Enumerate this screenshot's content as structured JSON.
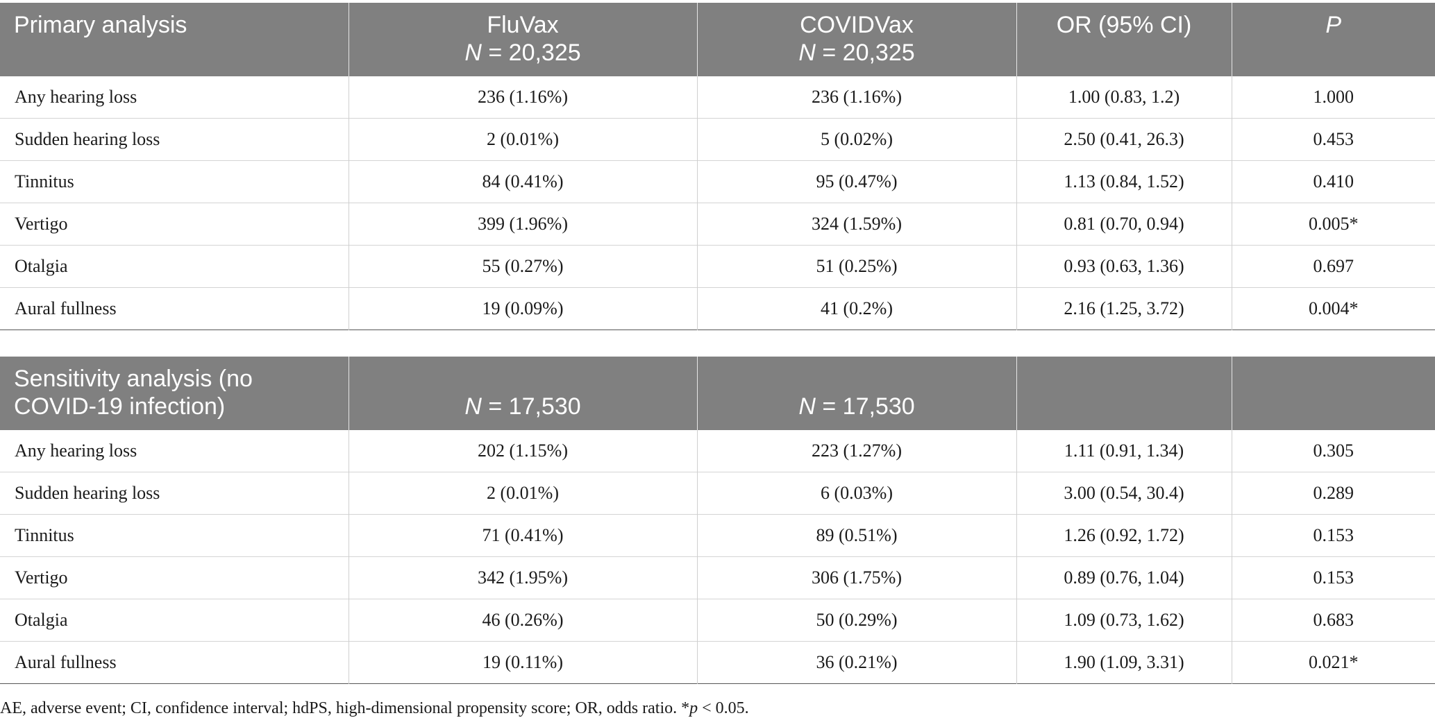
{
  "primary": {
    "headers": {
      "label": "Primary analysis",
      "fluvax_name": "FluVax",
      "fluvax_n_symbol": "N",
      "fluvax_n_value": " = 20,325",
      "covidvax_name": "COVIDVax",
      "covidvax_n_symbol": "N",
      "covidvax_n_value": " = 20,325",
      "or": "OR (95% CI)",
      "p": "P"
    },
    "rows": [
      {
        "outcome": "Any hearing loss",
        "fluvax": "236 (1.16%)",
        "covidvax": "236 (1.16%)",
        "or": "1.00 (0.83, 1.2)",
        "p": "1.000"
      },
      {
        "outcome": "Sudden hearing loss",
        "fluvax": "2 (0.01%)",
        "covidvax": "5 (0.02%)",
        "or": "2.50 (0.41, 26.3)",
        "p": "0.453"
      },
      {
        "outcome": "Tinnitus",
        "fluvax": "84 (0.41%)",
        "covidvax": "95 (0.47%)",
        "or": "1.13 (0.84, 1.52)",
        "p": "0.410"
      },
      {
        "outcome": "Vertigo",
        "fluvax": "399 (1.96%)",
        "covidvax": "324 (1.59%)",
        "or": "0.81 (0.70, 0.94)",
        "p": "0.005*"
      },
      {
        "outcome": "Otalgia",
        "fluvax": "55 (0.27%)",
        "covidvax": "51 (0.25%)",
        "or": "0.93 (0.63, 1.36)",
        "p": "0.697"
      },
      {
        "outcome": "Aural fullness",
        "fluvax": "19 (0.09%)",
        "covidvax": "41 (0.2%)",
        "or": "2.16 (1.25, 3.72)",
        "p": "0.004*"
      }
    ]
  },
  "sensitivity": {
    "headers": {
      "label_line1": "Sensitivity analysis (no",
      "label_line2": "COVID-19 infection)",
      "fluvax_n_symbol": "N",
      "fluvax_n_value": " = 17,530",
      "covidvax_n_symbol": "N",
      "covidvax_n_value": " = 17,530"
    },
    "rows": [
      {
        "outcome": "Any hearing loss",
        "fluvax": "202 (1.15%)",
        "covidvax": "223 (1.27%)",
        "or": "1.11 (0.91, 1.34)",
        "p": "0.305"
      },
      {
        "outcome": "Sudden hearing loss",
        "fluvax": "2 (0.01%)",
        "covidvax": "6 (0.03%)",
        "or": "3.00 (0.54, 30.4)",
        "p": "0.289"
      },
      {
        "outcome": "Tinnitus",
        "fluvax": "71 (0.41%)",
        "covidvax": "89 (0.51%)",
        "or": "1.26 (0.92, 1.72)",
        "p": "0.153"
      },
      {
        "outcome": "Vertigo",
        "fluvax": "342 (1.95%)",
        "covidvax": "306 (1.75%)",
        "or": "0.89 (0.76, 1.04)",
        "p": "0.153"
      },
      {
        "outcome": "Otalgia",
        "fluvax": "46 (0.26%)",
        "covidvax": "50 (0.29%)",
        "or": "1.09 (0.73, 1.62)",
        "p": "0.683"
      },
      {
        "outcome": "Aural fullness",
        "fluvax": "19 (0.11%)",
        "covidvax": "36 (0.21%)",
        "or": "1.90 (1.09, 3.31)",
        "p": "0.021*"
      }
    ]
  },
  "footnote": {
    "text_before": "AE, adverse event; CI, confidence interval; hdPS, high-dimensional propensity score; OR, odds ratio. *",
    "p_symbol": "p",
    "text_after": " < 0.05."
  },
  "colors": {
    "header_background": "#808080",
    "header_text": "#ffffff",
    "body_text": "#1a1a1a",
    "row_divider": "#d4d4d4"
  }
}
